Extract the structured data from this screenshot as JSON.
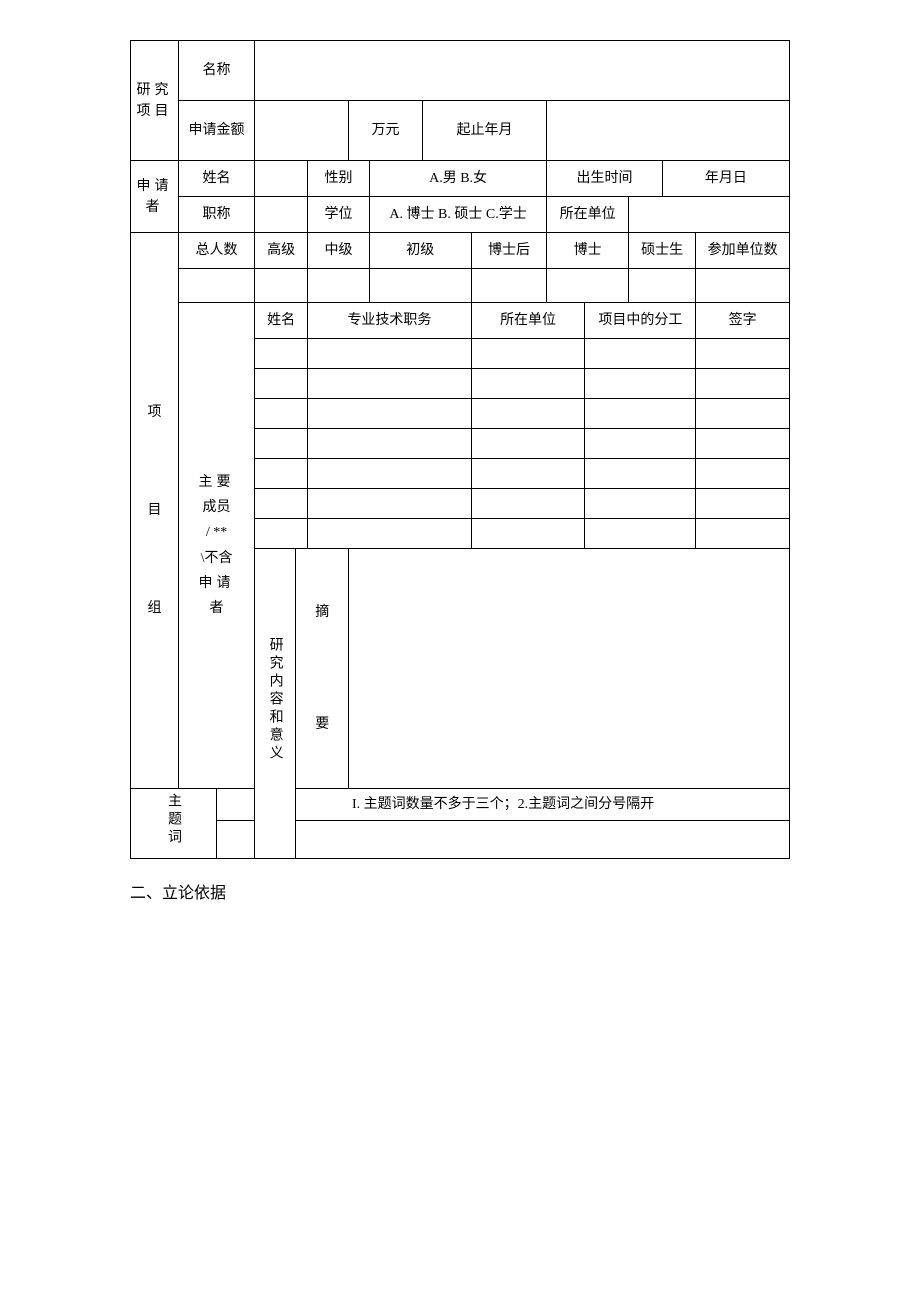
{
  "project": {
    "section_label": "研究项目",
    "name_label": "名称",
    "name_value": "",
    "amount_label": "申请金额",
    "amount_value": "",
    "amount_unit": "万元",
    "duration_label": "起止年月",
    "duration_value": ""
  },
  "applicant": {
    "section_label": "申请者",
    "name_label": "姓名",
    "name_value": "",
    "gender_label": "性别",
    "gender_options": "A.男 B.女",
    "birth_label": "出生时间",
    "birth_value": "年月日",
    "title_label": "职称",
    "title_value": "",
    "degree_label": "学位",
    "degree_options": "A. 博士 B. 硕士 C.学士",
    "unit_label": "所在单位",
    "unit_value": ""
  },
  "team": {
    "section_label_1": "项",
    "section_label_2": "目",
    "section_label_3": "组",
    "headers": {
      "total": "总人数",
      "senior": "高级",
      "mid": "中级",
      "junior": "初级",
      "postdoc": "博士后",
      "phd": "博士",
      "master": "硕士生",
      "units": "参加单位数"
    },
    "counts": {
      "total": "",
      "senior": "",
      "mid": "",
      "junior": "",
      "postdoc": "",
      "phd": "",
      "master": "",
      "units": ""
    },
    "members_label": "主要成员 / ** \\不含申请者",
    "member_headers": {
      "name": "姓名",
      "title": "专业技术职务",
      "unit": "所在单位",
      "role": "项目中的分工",
      "sign": "签字"
    },
    "rows": [
      {
        "name": "",
        "title": "",
        "unit": "",
        "role": "",
        "sign": ""
      },
      {
        "name": "",
        "title": "",
        "unit": "",
        "role": "",
        "sign": ""
      },
      {
        "name": "",
        "title": "",
        "unit": "",
        "role": "",
        "sign": ""
      },
      {
        "name": "",
        "title": "",
        "unit": "",
        "role": "",
        "sign": ""
      },
      {
        "name": "",
        "title": "",
        "unit": "",
        "role": "",
        "sign": ""
      },
      {
        "name": "",
        "title": "",
        "unit": "",
        "role": "",
        "sign": ""
      },
      {
        "name": "",
        "title": "",
        "unit": "",
        "role": "",
        "sign": ""
      }
    ]
  },
  "content": {
    "section_label": "研究内容和意义",
    "abstract_label_1": "摘",
    "abstract_label_2": "要",
    "abstract_value": "",
    "keywords_label": "主题词",
    "keywords_hint": "I. 主题词数量不多于三个；2.主题词之间分号隔开",
    "keywords_value": ""
  },
  "footer": {
    "section2_title": "二、立论依据"
  }
}
